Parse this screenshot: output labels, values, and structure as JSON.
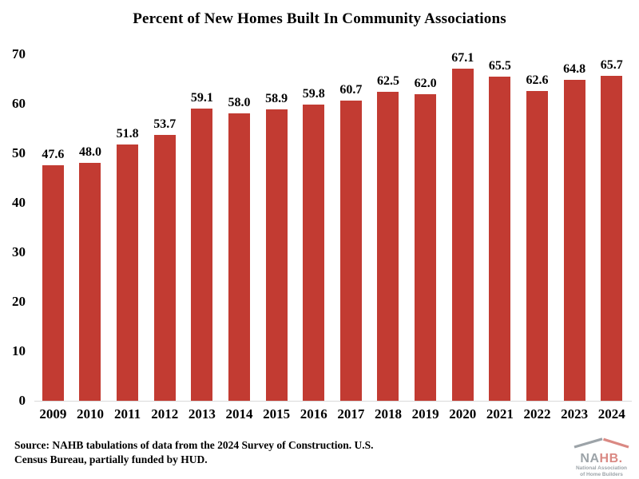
{
  "title": "Percent of New Homes Built In Community Associations",
  "source": {
    "line1": "Source: NAHB tabulations of data from the 2024 Survey of Construction. U.S.",
    "line2": "Census Bureau, partially funded by HUD."
  },
  "logo": {
    "name": "NAHB",
    "text_na": "NA",
    "text_hb": "HB",
    "period": ".",
    "subtitle_line1": "National Association",
    "subtitle_line2": "of Home Builders"
  },
  "colors": {
    "bar": "#c23b32",
    "text": "#000000",
    "baseline": "#d9d9d9",
    "logo_slate": "#5b6770",
    "logo_red": "#c23b32"
  },
  "chart_data": {
    "type": "bar",
    "title": "Percent of New Homes Built In Community Associations",
    "categories": [
      "2009",
      "2010",
      "2011",
      "2012",
      "2013",
      "2014",
      "2015",
      "2016",
      "2017",
      "2018",
      "2019",
      "2020",
      "2021",
      "2022",
      "2023",
      "2024"
    ],
    "values": [
      47.6,
      48.0,
      51.8,
      53.7,
      59.1,
      58.0,
      58.9,
      59.8,
      60.7,
      62.5,
      62.0,
      67.1,
      65.5,
      62.6,
      64.8,
      65.7
    ],
    "value_label_decimals": 1,
    "xlabel": "",
    "ylabel": "",
    "ylim": [
      0,
      70
    ],
    "yticks": [
      0,
      10,
      20,
      30,
      40,
      50,
      60,
      70
    ],
    "grid": false,
    "legend": false,
    "bar_color": "#c23b32"
  }
}
